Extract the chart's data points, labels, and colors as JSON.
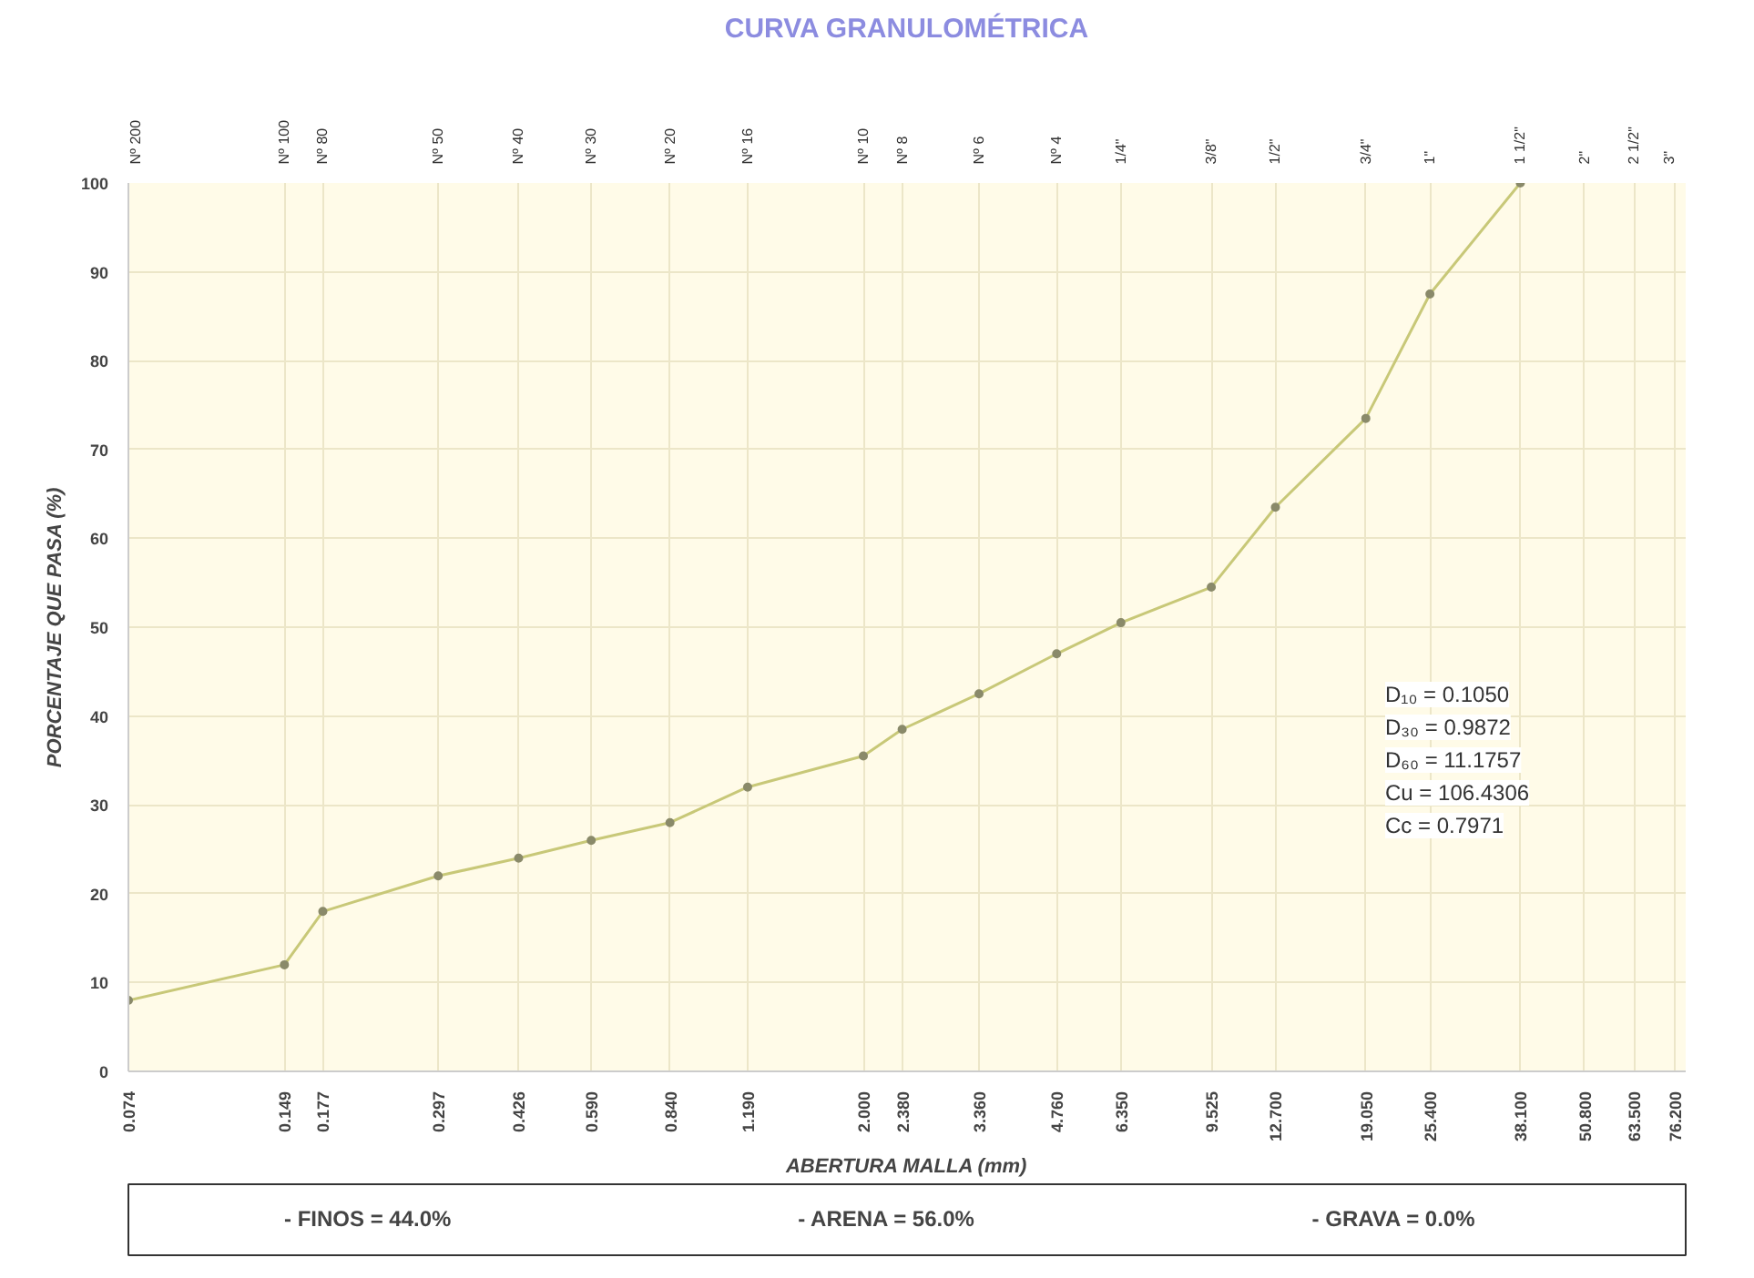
{
  "chart_data": {
    "type": "line",
    "title": "CURVA GRANULOMÉTRICA",
    "xlabel": "ABERTURA MALLA (mm)",
    "ylabel": "PORCENTAJE QUE PASA (%)",
    "log": "x",
    "grid": true,
    "marker": "circle",
    "line_style": "solid",
    "x": [
      0.074,
      0.149,
      0.177,
      0.297,
      0.426,
      0.59,
      0.84,
      1.19,
      2.0,
      2.38,
      3.36,
      4.76,
      6.35,
      9.525,
      12.7,
      19.05,
      25.4,
      38.1
    ],
    "series": [
      {
        "color": "#c8c878",
        "values": [
          8,
          12,
          18,
          22,
          24,
          26,
          28,
          32,
          35.5,
          38.5,
          42.5,
          47,
          50.5,
          54.5,
          63.5,
          73.5,
          87.5,
          100
        ]
      }
    ],
    "xlim": [
      0.074,
      80
    ],
    "ylim": [
      0,
      100
    ],
    "yticks": [
      0,
      10,
      20,
      30,
      40,
      50,
      60,
      70,
      80,
      90,
      100
    ],
    "xticks": [
      {
        "value": 0.074,
        "label": "0.074"
      },
      {
        "value": 0.149,
        "label": "0.149"
      },
      {
        "value": 0.177,
        "label": "0.177"
      },
      {
        "value": 0.297,
        "label": "0.297"
      },
      {
        "value": 0.426,
        "label": "0.426"
      },
      {
        "value": 0.59,
        "label": "0.590"
      },
      {
        "value": 0.84,
        "label": "0.840"
      },
      {
        "value": 1.19,
        "label": "1.190"
      },
      {
        "value": 2.0,
        "label": "2.000"
      },
      {
        "value": 2.38,
        "label": "2.380"
      },
      {
        "value": 3.36,
        "label": "3.360"
      },
      {
        "value": 4.76,
        "label": "4.760"
      },
      {
        "value": 6.35,
        "label": "6.350"
      },
      {
        "value": 9.525,
        "label": "9.525"
      },
      {
        "value": 12.7,
        "label": "12.700"
      },
      {
        "value": 19.05,
        "label": "19.050"
      },
      {
        "value": 25.4,
        "label": "25.400"
      },
      {
        "value": 38.1,
        "label": "38.100"
      },
      {
        "value": 50.8,
        "label": "50.800"
      },
      {
        "value": 63.5,
        "label": "63.500"
      },
      {
        "value": 76.2,
        "label": "76.200"
      }
    ],
    "annotations": [
      "D₁₀ = 0.1050",
      "D₃₀ = 0.9872",
      "D₆₀ = 11.1757",
      "Cu = 106.4306",
      "Cc = 0.7971",
      "- FINOS = 44.0%",
      "- ARENA = 56.0%",
      "- GRAVA = 0.0%",
      "Nº 200",
      "Nº 100",
      "Nº 80",
      "Nº 50",
      "Nº 40",
      "Nº 30",
      "Nº 20",
      "Nº 16",
      "Nº 10",
      "Nº 8",
      "Nº 6",
      "Nº 4",
      "1/4\"",
      "3/8\"",
      "1/2\"",
      "3/4\"",
      "1\"",
      "1 1/2\"",
      "2\"",
      "2 1/2\"",
      "3\""
    ]
  }
}
